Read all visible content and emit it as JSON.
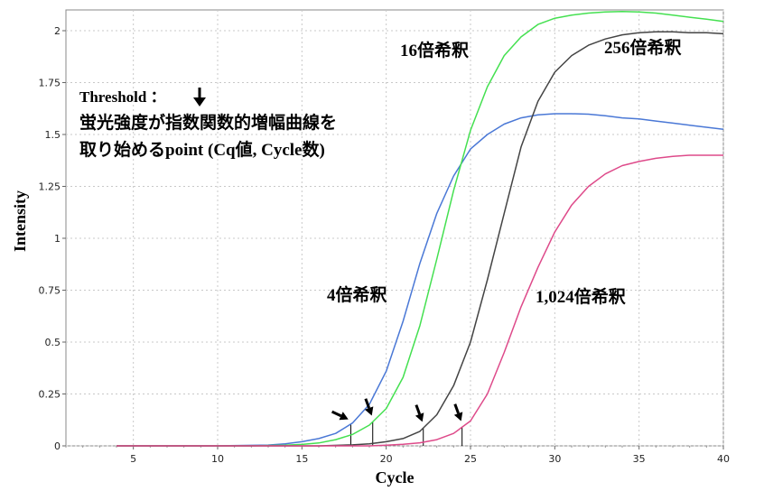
{
  "chart_data": {
    "type": "line",
    "xlabel": "Cycle",
    "ylabel": "Intensity",
    "xlim": [
      1,
      40
    ],
    "ylim": [
      0,
      2.1
    ],
    "x_ticks": [
      5,
      10,
      15,
      20,
      25,
      30,
      35,
      40
    ],
    "y_ticks": [
      0,
      0.25,
      0.5,
      0.75,
      1,
      1.25,
      1.5,
      1.75,
      2
    ],
    "x_tick_labels": [
      "5",
      "10",
      "15",
      "20",
      "25",
      "30",
      "35",
      "40"
    ],
    "y_tick_labels": [
      "0",
      "0.25",
      "0.5",
      "0.75",
      "1",
      "1.25",
      "1.5",
      "1.75",
      "2"
    ],
    "grid": "dotted",
    "annotations": {
      "threshold_title": "Threshold ：",
      "threshold_line1": "蛍光強度が指数関数的増幅曲線を",
      "threshold_line2": "取り始めるpoint (Cq値, Cycle数)"
    },
    "series": [
      {
        "name": "4倍希釈",
        "color": "#4a78d6",
        "cq": 17.9,
        "x": [
          4,
          10,
          13,
          14,
          15,
          16,
          17,
          18,
          19,
          20,
          21,
          22,
          23,
          24,
          25,
          26,
          27,
          28,
          29,
          30,
          31,
          32,
          33,
          34,
          35,
          36,
          37,
          38,
          39,
          40
        ],
        "values": [
          0,
          0,
          0.004,
          0.01,
          0.02,
          0.035,
          0.06,
          0.11,
          0.2,
          0.36,
          0.6,
          0.88,
          1.12,
          1.3,
          1.43,
          1.5,
          1.55,
          1.58,
          1.595,
          1.6,
          1.6,
          1.598,
          1.59,
          1.58,
          1.575,
          1.565,
          1.555,
          1.545,
          1.535,
          1.525
        ]
      },
      {
        "name": "16倍希釈",
        "color": "#44e050",
        "cq": 19.2,
        "x": [
          4,
          12,
          14,
          15,
          16,
          17,
          18,
          19,
          20,
          21,
          22,
          23,
          24,
          25,
          26,
          27,
          28,
          29,
          30,
          31,
          32,
          33,
          34,
          35,
          36,
          37,
          38,
          39,
          40
        ],
        "values": [
          0,
          0,
          0.003,
          0.007,
          0.014,
          0.03,
          0.055,
          0.1,
          0.18,
          0.33,
          0.58,
          0.9,
          1.23,
          1.52,
          1.73,
          1.88,
          1.97,
          2.03,
          2.06,
          2.075,
          2.085,
          2.09,
          2.092,
          2.09,
          2.085,
          2.075,
          2.065,
          2.055,
          2.045
        ]
      },
      {
        "name": "256倍希釈",
        "color": "#444444",
        "cq": 22.2,
        "x": [
          4,
          16,
          18,
          19,
          20,
          21,
          22,
          23,
          24,
          25,
          26,
          27,
          28,
          29,
          30,
          31,
          32,
          33,
          34,
          35,
          36,
          37,
          38,
          39,
          40
        ],
        "values": [
          0,
          0,
          0.005,
          0.01,
          0.02,
          0.035,
          0.07,
          0.15,
          0.29,
          0.5,
          0.8,
          1.12,
          1.44,
          1.66,
          1.8,
          1.88,
          1.93,
          1.96,
          1.98,
          1.99,
          1.995,
          1.995,
          1.99,
          1.99,
          1.985
        ]
      },
      {
        "name": "1,024倍希釈",
        "color": "#de4a8a",
        "cq": 24.5,
        "x": [
          4,
          19,
          20,
          21,
          22,
          23,
          24,
          25,
          26,
          27,
          28,
          29,
          30,
          31,
          32,
          33,
          34,
          35,
          36,
          37,
          38,
          39,
          40
        ],
        "values": [
          0,
          0,
          0.003,
          0.008,
          0.015,
          0.03,
          0.06,
          0.12,
          0.25,
          0.45,
          0.67,
          0.86,
          1.03,
          1.16,
          1.25,
          1.31,
          1.35,
          1.37,
          1.385,
          1.395,
          1.4,
          1.4,
          1.4
        ]
      }
    ]
  }
}
